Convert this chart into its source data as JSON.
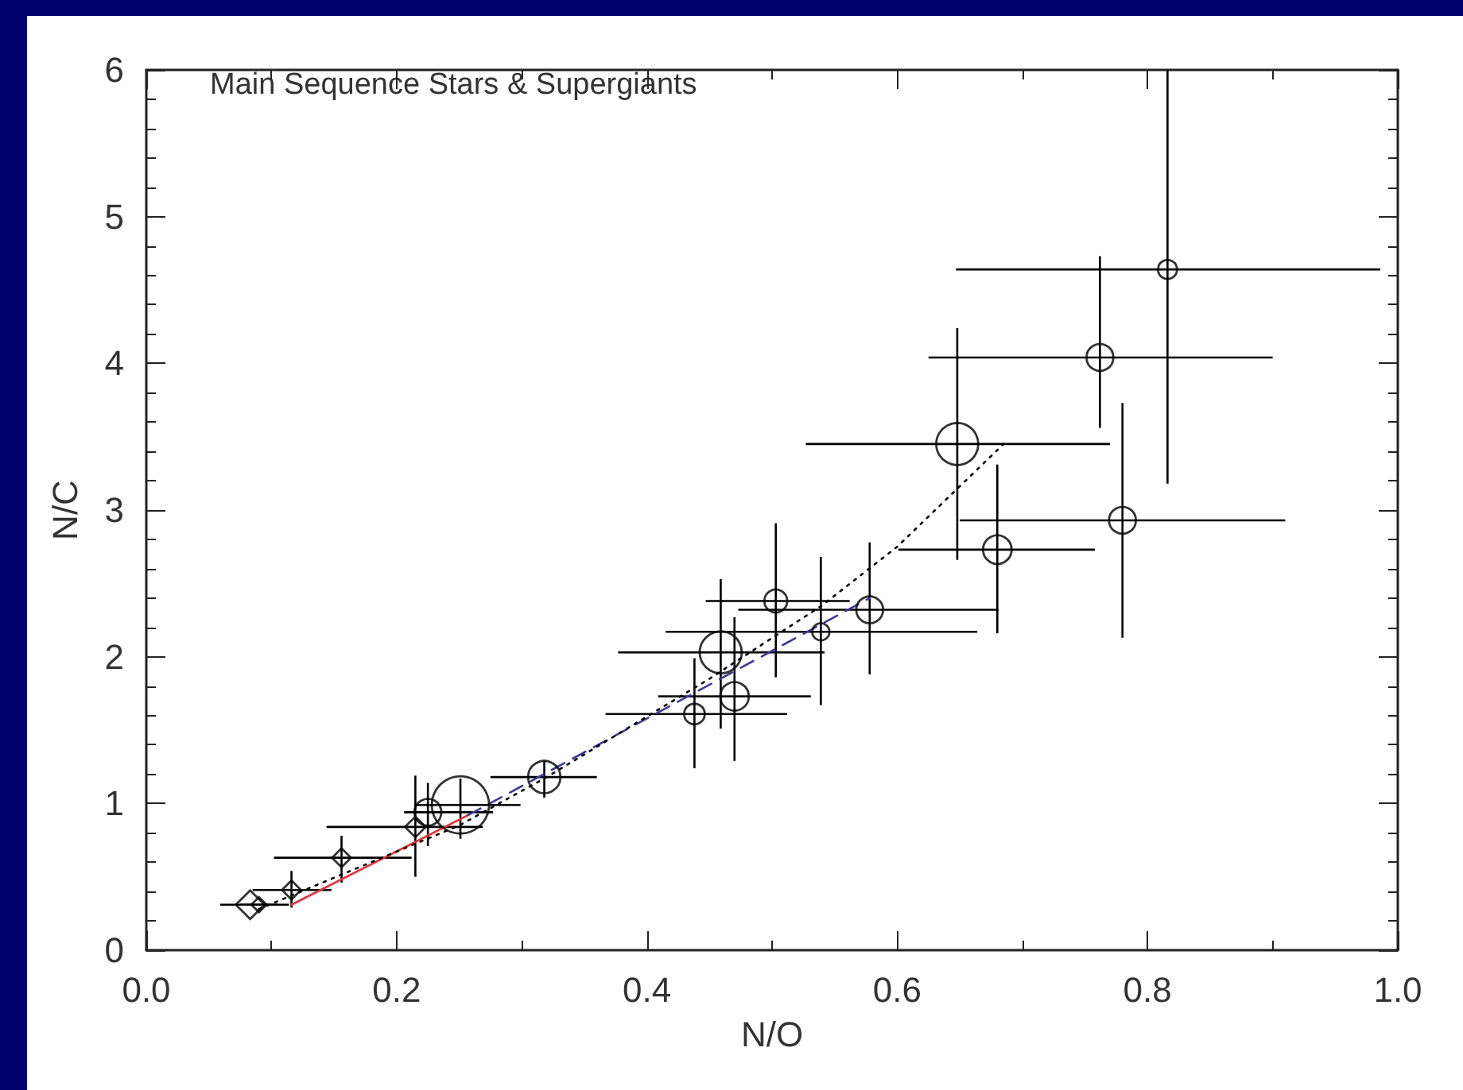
{
  "chart_data": {
    "type": "bubble",
    "xlabel": "N/O",
    "ylabel": "N/C",
    "annotations": [
      "Main Sequence Stars & Supergiants"
    ],
    "xlim": [
      0,
      1
    ],
    "ylim": [
      0,
      6
    ],
    "xticks": [
      {
        "value": 0,
        "label": "0.0"
      },
      {
        "value": 0.2,
        "label": "0.2"
      },
      {
        "value": 0.4,
        "label": "0.4"
      },
      {
        "value": 0.6,
        "label": "0.6"
      },
      {
        "value": 0.8,
        "label": "0.8"
      },
      {
        "value": 1,
        "label": "1.0"
      }
    ],
    "yticks": [
      0,
      1,
      2,
      3,
      4,
      5,
      6
    ],
    "grid": false,
    "series": [
      {
        "marker": "diamond",
        "color": "#000000",
        "x": [
          0.083,
          0.09,
          0.116,
          0.156,
          0.215
        ],
        "values": [
          0.31,
          0.31,
          0.41,
          0.63,
          0.84
        ],
        "sizes": [
          0.16,
          0.045,
          0.07,
          0.07,
          0.083
        ],
        "xerrors": [
          [
            0.059,
            0.114
          ],
          [
            0.075,
            0.105
          ],
          [
            0.085,
            0.148
          ],
          [
            0.102,
            0.212
          ],
          [
            0.144,
            0.269
          ]
        ],
        "errors": [
          null,
          null,
          [
            0.29,
            0.54
          ],
          [
            0.46,
            0.78
          ],
          [
            0.5,
            1.19
          ]
        ]
      },
      {
        "marker": "circle",
        "color": "#000000",
        "x": [
          0.225,
          0.251,
          0.318,
          0.438,
          0.47,
          0.459,
          0.503,
          0.539,
          0.578,
          0.648,
          0.68,
          0.762,
          0.78,
          0.816
        ],
        "values": [
          0.94,
          0.99,
          1.18,
          1.61,
          1.73,
          2.03,
          2.38,
          2.17,
          2.32,
          3.45,
          2.73,
          4.04,
          2.93,
          4.64
        ],
        "sizes": [
          0.22,
          1,
          0.32,
          0.13,
          0.25,
          0.54,
          0.16,
          0.09,
          0.22,
          0.54,
          0.25,
          0.22,
          0.22,
          0.11
        ],
        "xerrors": [
          [
            0.206,
            0.277
          ],
          [
            0.214,
            0.299
          ],
          [
            0.275,
            0.36
          ],
          [
            0.367,
            0.512
          ],
          [
            0.409,
            0.531
          ],
          [
            0.377,
            0.542
          ],
          [
            0.447,
            0.562
          ],
          [
            0.415,
            0.664
          ],
          [
            0.473,
            0.681
          ],
          [
            0.527,
            0.77
          ],
          [
            0.601,
            0.758
          ],
          [
            0.625,
            0.9
          ],
          [
            0.65,
            0.91
          ],
          [
            0.647,
            0.986
          ]
        ],
        "errors": [
          [
            0.71,
            1.14
          ],
          [
            0.76,
            1.17
          ],
          [
            1.04,
            1.29
          ],
          [
            1.24,
            1.99
          ],
          [
            1.29,
            2.27
          ],
          [
            1.51,
            2.53
          ],
          [
            1.86,
            2.91
          ],
          [
            1.67,
            2.68
          ],
          [
            1.88,
            2.78
          ],
          [
            2.66,
            4.24
          ],
          [
            2.16,
            3.31
          ],
          [
            3.56,
            4.73
          ],
          [
            2.13,
            3.73
          ],
          [
            3.18,
            6
          ]
        ]
      },
      {
        "type": "line",
        "color": "#e8303a",
        "line_style": "solid",
        "marker": "none",
        "x": [
          0.116,
          0.257
        ],
        "values": [
          0.31,
          0.92
        ]
      },
      {
        "type": "line",
        "color": "#3a3aa0",
        "line_style": "dashed",
        "marker": "none",
        "x": [
          0.257,
          0.578
        ],
        "values": [
          0.92,
          2.4
        ]
      },
      {
        "type": "line",
        "color": "#000000",
        "line_style": "dotted",
        "marker": "none",
        "x": [
          0.09,
          0.25,
          0.32,
          0.45,
          0.54,
          0.6,
          0.685
        ],
        "values": [
          0.28,
          0.85,
          1.18,
          1.85,
          2.35,
          2.75,
          3.45
        ]
      }
    ]
  }
}
